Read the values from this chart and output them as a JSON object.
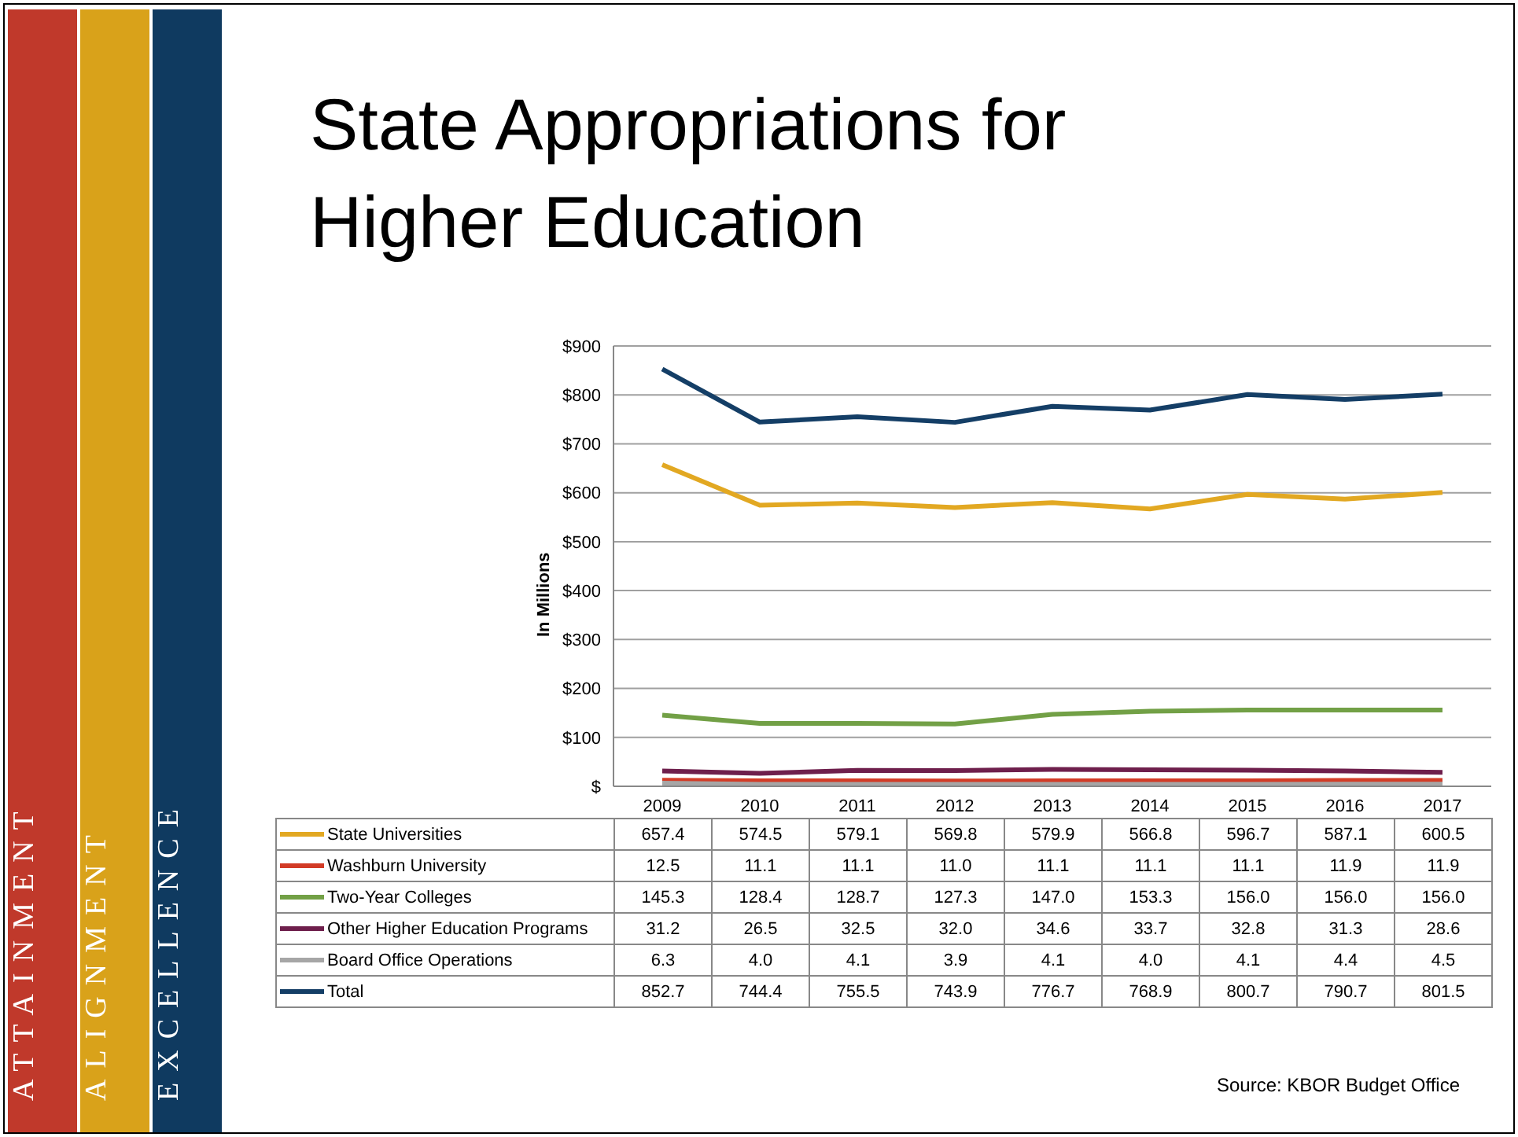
{
  "chart_data": {
    "type": "line",
    "title": "State Appropriations for Higher Education",
    "ylabel": "In Millions",
    "categories": [
      "2009",
      "2010",
      "2011",
      "2012",
      "2013",
      "2014",
      "2015",
      "2016",
      "2017"
    ],
    "series": [
      {
        "name": "State Universities",
        "color": "#e2a822",
        "values": [
          657.4,
          574.5,
          579.1,
          569.8,
          579.9,
          566.8,
          596.7,
          587.1,
          600.5
        ],
        "value_labels": [
          "657.4",
          "574.5",
          "579.1",
          "569.8",
          "579.9",
          "566.8",
          "596.7",
          "587.1",
          "600.5"
        ]
      },
      {
        "name": "Washburn University",
        "color": "#d23b26",
        "values": [
          12.5,
          11.1,
          11.1,
          11.0,
          11.1,
          11.1,
          11.1,
          11.9,
          11.9
        ],
        "value_labels": [
          "12.5",
          "11.1",
          "11.1",
          "11.0",
          "11.1",
          "11.1",
          "11.1",
          "11.9",
          "11.9"
        ]
      },
      {
        "name": "Two-Year Colleges",
        "color": "#72a046",
        "values": [
          145.3,
          128.4,
          128.7,
          127.3,
          147.0,
          153.3,
          156.0,
          156.0,
          156.0
        ],
        "value_labels": [
          "145.3",
          "128.4",
          "128.7",
          "127.3",
          "147.0",
          "153.3",
          "156.0",
          "156.0",
          "156.0"
        ]
      },
      {
        "name": "Other Higher Education Programs",
        "color": "#6e1f4c",
        "values": [
          31.2,
          26.5,
          32.5,
          32.0,
          34.6,
          33.7,
          32.8,
          31.3,
          28.6
        ],
        "value_labels": [
          "31.2",
          "26.5",
          "32.5",
          "32.0",
          "34.6",
          "33.7",
          "32.8",
          "31.3",
          "28.6"
        ]
      },
      {
        "name": "Board Office Operations",
        "color": "#a6a6a6",
        "values": [
          6.3,
          4.0,
          4.1,
          3.9,
          4.1,
          4.0,
          4.1,
          4.4,
          4.5
        ],
        "value_labels": [
          "6.3",
          "4.0",
          "4.1",
          "3.9",
          "4.1",
          "4.0",
          "4.1",
          "4.4",
          "4.5"
        ]
      },
      {
        "name": "Total",
        "color": "#143e66",
        "values": [
          852.7,
          744.4,
          755.5,
          743.9,
          776.7,
          768.9,
          800.7,
          790.7,
          801.5
        ],
        "value_labels": [
          "852.7",
          "744.4",
          "755.5",
          "743.9",
          "776.7",
          "768.9",
          "800.7",
          "790.7",
          "801.5"
        ]
      }
    ],
    "ylim": [
      0,
      900
    ],
    "yticks": [
      {
        "value": 0,
        "label": "$"
      },
      {
        "value": 100,
        "label": "$100"
      },
      {
        "value": 200,
        "label": "$200"
      },
      {
        "value": 300,
        "label": "$300"
      },
      {
        "value": 400,
        "label": "$400"
      },
      {
        "value": 500,
        "label": "$500"
      },
      {
        "value": 600,
        "label": "$600"
      },
      {
        "value": 700,
        "label": "$700"
      },
      {
        "value": 800,
        "label": "$800"
      },
      {
        "value": 900,
        "label": "$900"
      }
    ],
    "grid": "y",
    "legend": "bottom",
    "marker": "none",
    "line_style": "solid",
    "annotations": [
      "ATTAINMENT",
      "ALIGNMENT",
      "EXCELLENCE",
      "Source: KBOR Budget Office"
    ]
  }
}
